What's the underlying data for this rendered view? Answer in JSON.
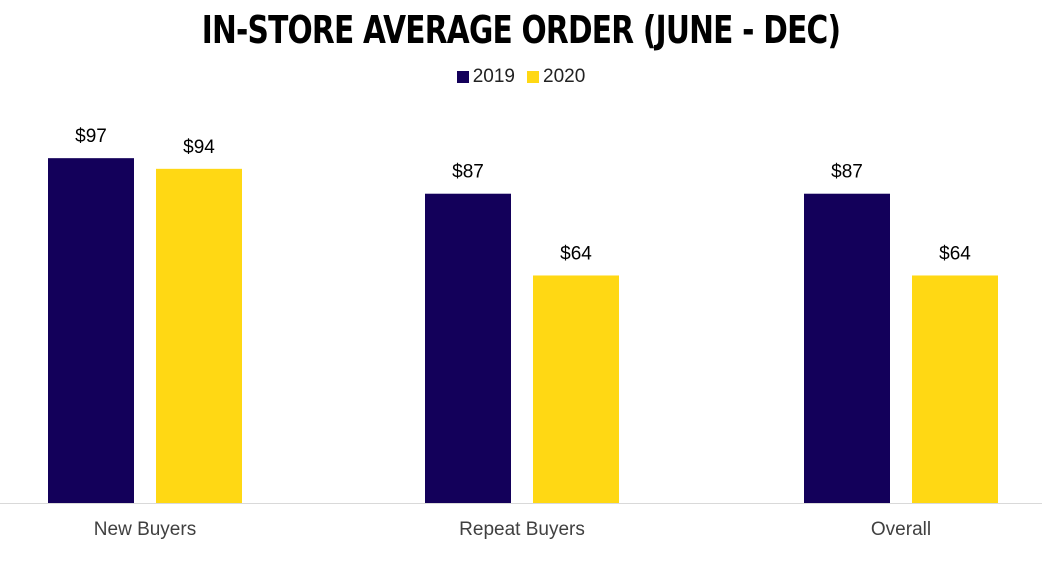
{
  "chart_data": {
    "type": "bar",
    "title": "IN-STORE AVERAGE ORDER (JUNE - DEC)",
    "categories": [
      "New Buyers",
      "Repeat Buyers",
      "Overall"
    ],
    "series": [
      {
        "name": "2019",
        "color": "#13005a",
        "values": [
          97,
          87,
          87
        ],
        "labels": [
          "$97",
          "$87",
          "$87"
        ]
      },
      {
        "name": "2020",
        "color": "#ffd814",
        "values": [
          94,
          64,
          64
        ],
        "labels": [
          "$94",
          "$64",
          "$64"
        ]
      }
    ],
    "ylim": [
      0,
      100
    ],
    "xlabel": "",
    "ylabel": "",
    "grid": false,
    "legend_position": "top-center"
  }
}
